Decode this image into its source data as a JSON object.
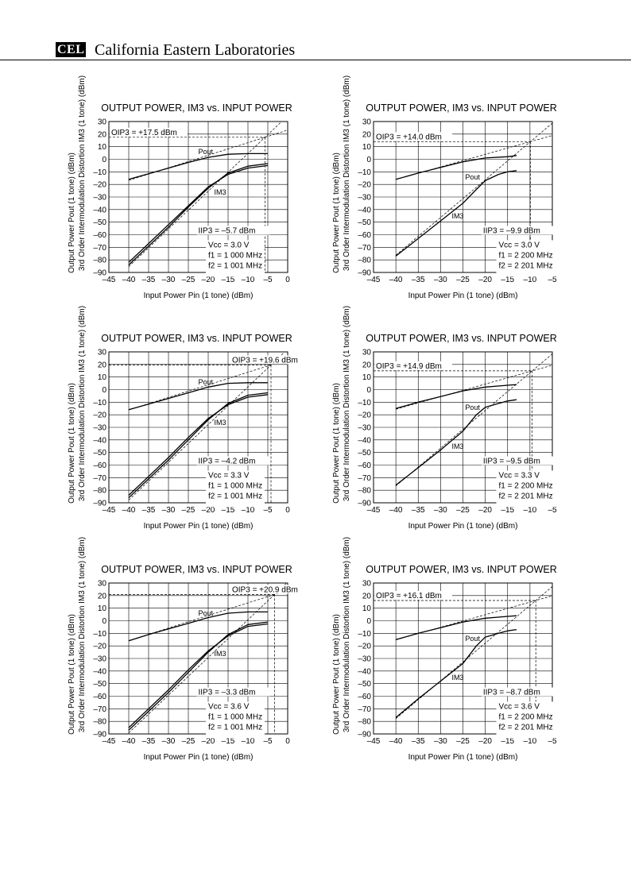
{
  "header": {
    "logo_text": "CEL",
    "company": "California Eastern Laboratories"
  },
  "chart_data": [
    {
      "type": "line",
      "title": "OUTPUT POWER, IM3 vs. INPUT POWER",
      "xlabel": "Input Power  Pin (1 tone)  (dBm)",
      "ylabel_lines": [
        "Output Power  Pout (1 tone)  (dBm)",
        "3rd Order Intermodulation Distortion  IM3 (1 tone)  (dBm)"
      ],
      "xlim": [
        -45,
        0
      ],
      "ylim": [
        -90,
        30
      ],
      "xticks": [
        -45,
        -40,
        -35,
        -30,
        -25,
        -20,
        -15,
        -10,
        -5,
        0
      ],
      "xtick_labels": [
        "–45",
        "–40",
        "–35",
        "–30",
        "–25",
        "–20",
        "–15",
        "–10",
        "–5",
        "0"
      ],
      "yticks": [
        30,
        20,
        10,
        0,
        -10,
        -20,
        -30,
        -40,
        -50,
        -60,
        -70,
        -80,
        -90
      ],
      "ytick_labels": [
        "30",
        "20",
        "10",
        "0",
        "–10",
        "–20",
        "–30",
        "–40",
        "–50",
        "–60",
        "–70",
        "–80",
        "–90"
      ],
      "oip3_label": "OIP3 = +17.5 dBm",
      "iip3_label": "IIP3 = –5.7 dBm",
      "oip3": 17.5,
      "iip3": -5.7,
      "conditions": [
        "Vcc = 3.0 V",
        "f1 = 1 000 MHz",
        "f2 = 1 001 MHz"
      ],
      "pout_label": "Pout",
      "im3_label": "IM3",
      "series": [
        {
          "x": [
            -40,
            -35,
            -30,
            -25,
            -20,
            -15,
            -10,
            -5
          ],
          "y": [
            -16,
            -11.5,
            -7,
            -2.5,
            1.5,
            4,
            4.5,
            4.5
          ]
        },
        {
          "x": [
            -40,
            -35,
            -30,
            -25,
            -20,
            -15,
            -10,
            -5
          ],
          "y": [
            -84,
            -69,
            -54,
            -38,
            -23,
            -11,
            -5.5,
            -3.5
          ]
        },
        {
          "x": [
            -40,
            -35,
            -30,
            -25,
            -20,
            -15,
            -10,
            -5
          ],
          "y": [
            -82,
            -67,
            -52,
            -37,
            -22,
            -12,
            -7,
            -5
          ]
        }
      ]
    },
    {
      "type": "line",
      "title": "OUTPUT POWER, IM3 vs. INPUT POWER",
      "xlabel": "Input Power  Pin (1 tone)  (dBm)",
      "ylabel_lines": [
        "Output Power  Pout (1 tone)  (dBm)",
        "3rd Order Intermodulation Distortion  IM3 (1 tone)  (dBm)"
      ],
      "xlim": [
        -45,
        -5
      ],
      "ylim": [
        -90,
        30
      ],
      "xticks": [
        -45,
        -40,
        -35,
        -30,
        -25,
        -20,
        -15,
        -10,
        -5
      ],
      "xtick_labels": [
        "–45",
        "–40",
        "–35",
        "–30",
        "–25",
        "–20",
        "–15",
        "–10",
        "–5"
      ],
      "yticks": [
        30,
        20,
        10,
        0,
        -10,
        -20,
        -30,
        -40,
        -50,
        -60,
        -70,
        -80,
        -90
      ],
      "ytick_labels": [
        "30",
        "20",
        "10",
        "0",
        "–10",
        "–20",
        "–30",
        "–40",
        "–50",
        "–60",
        "–70",
        "–80",
        "–90"
      ],
      "oip3_label": "OIP3 = +14.0 dBm",
      "iip3_label": "IIP3 = –9.9 dBm",
      "oip3": 14.0,
      "iip3": -9.9,
      "conditions": [
        "Vcc = 3.0 V",
        "f1 = 2 200 MHz",
        "f2 = 2 201 MHz"
      ],
      "pout_label": "Pout",
      "im3_label": "IM3",
      "series": [
        {
          "x": [
            -40,
            -35,
            -30,
            -25,
            -20,
            -15,
            -13
          ],
          "y": [
            -16,
            -11,
            -6.5,
            -2,
            1,
            2,
            3
          ]
        },
        {
          "x": [
            -40,
            -35,
            -30,
            -25,
            -22,
            -20,
            -17,
            -15,
            -13
          ],
          "y": [
            -77,
            -63,
            -49,
            -35,
            -24,
            -17,
            -12,
            -10,
            -9
          ]
        }
      ]
    },
    {
      "type": "line",
      "title": "OUTPUT POWER, IM3 vs. INPUT POWER",
      "xlabel": "Input Power  Pin (1 tone)  (dBm)",
      "ylabel_lines": [
        "Output Power  Pout (1 tone)  (dBm)",
        "3rd Order Intermodulation Distortion  IM3 (1 tone)  (dBm)"
      ],
      "xlim": [
        -45,
        0
      ],
      "ylim": [
        -90,
        30
      ],
      "xticks": [
        -45,
        -40,
        -35,
        -30,
        -25,
        -20,
        -15,
        -10,
        -5,
        0
      ],
      "xtick_labels": [
        "–45",
        "–40",
        "–35",
        "–30",
        "–25",
        "–20",
        "–15",
        "–10",
        "–5",
        "0"
      ],
      "yticks": [
        30,
        20,
        10,
        0,
        -10,
        -20,
        -30,
        -40,
        -50,
        -60,
        -70,
        -80,
        -90
      ],
      "ytick_labels": [
        "30",
        "20",
        "10",
        "0",
        "–10",
        "–20",
        "–30",
        "–40",
        "–50",
        "–60",
        "–70",
        "–80",
        "–90"
      ],
      "oip3_label": "OIP3 = +19.6 dBm",
      "iip3_label": "IIP3 = –4.2 dBm",
      "oip3": 19.6,
      "iip3": -4.2,
      "conditions": [
        "Vcc = 3.3 V",
        "f1 = 1 000 MHz",
        "f2 = 1 001 MHz"
      ],
      "pout_label": "Pout",
      "im3_label": "IM3",
      "series": [
        {
          "x": [
            -40,
            -35,
            -30,
            -25,
            -20,
            -15,
            -10,
            -5
          ],
          "y": [
            -16,
            -11.5,
            -7,
            -2.5,
            2,
            5,
            5.5,
            5.5
          ]
        },
        {
          "x": [
            -40,
            -35,
            -30,
            -25,
            -20,
            -15,
            -10,
            -5
          ],
          "y": [
            -86,
            -71,
            -56,
            -40,
            -24,
            -11,
            -4.5,
            -2.5
          ]
        },
        {
          "x": [
            -40,
            -35,
            -30,
            -25,
            -20,
            -15,
            -10,
            -5
          ],
          "y": [
            -84,
            -69,
            -54,
            -38,
            -23,
            -12,
            -6,
            -4
          ]
        }
      ]
    },
    {
      "type": "line",
      "title": "OUTPUT POWER, IM3 vs. INPUT POWER",
      "xlabel": "Input Power  Pin (1 tone)  (dBm)",
      "ylabel_lines": [
        "Output Power  Pout (1 tone)  (dBm)",
        "3rd Order Intermodulation Distortion  IM3 (1 tone)  (dBm)"
      ],
      "xlim": [
        -45,
        -5
      ],
      "ylim": [
        -90,
        30
      ],
      "xticks": [
        -45,
        -40,
        -35,
        -30,
        -25,
        -20,
        -15,
        -10,
        -5
      ],
      "xtick_labels": [
        "–45",
        "–40",
        "–35",
        "–30",
        "–25",
        "–20",
        "–15",
        "–10",
        "–5"
      ],
      "yticks": [
        30,
        20,
        10,
        0,
        -10,
        -20,
        -30,
        -40,
        -50,
        -60,
        -70,
        -80,
        -90
      ],
      "ytick_labels": [
        "30",
        "20",
        "10",
        "0",
        "–10",
        "–20",
        "–30",
        "–40",
        "–50",
        "–60",
        "–70",
        "–80",
        "–90"
      ],
      "oip3_label": "OIP3 = +14.9 dBm",
      "iip3_label": "IIP3 = –9.5 dBm",
      "oip3": 14.9,
      "iip3": -9.5,
      "conditions": [
        "Vcc = 3.3 V",
        "f1 = 2 200 MHz",
        "f2 = 2 201 MHz"
      ],
      "pout_label": "Pout",
      "im3_label": "IM3",
      "series": [
        {
          "x": [
            -40,
            -35,
            -30,
            -25,
            -20,
            -15,
            -13
          ],
          "y": [
            -15,
            -10,
            -5.5,
            -1,
            2,
            3.5,
            4
          ]
        },
        {
          "x": [
            -40,
            -35,
            -30,
            -25,
            -22,
            -20,
            -17,
            -15,
            -13
          ],
          "y": [
            -76,
            -62,
            -48,
            -33,
            -20,
            -14,
            -11,
            -9,
            -8
          ]
        }
      ]
    },
    {
      "type": "line",
      "title": "OUTPUT POWER, IM3 vs. INPUT POWER",
      "xlabel": "Input Power  Pin (1 tone)  (dBm)",
      "ylabel_lines": [
        "Output Power  Pout (1 tone)  (dBm)",
        "3rd Order Intermodulation Distortion  IM3 (1 tone)  (dBm)"
      ],
      "xlim": [
        -45,
        0
      ],
      "ylim": [
        -90,
        30
      ],
      "xticks": [
        -45,
        -40,
        -35,
        -30,
        -25,
        -20,
        -15,
        -10,
        -5,
        0
      ],
      "xtick_labels": [
        "–45",
        "–40",
        "–35",
        "–30",
        "–25",
        "–20",
        "–15",
        "–10",
        "–5",
        "0"
      ],
      "yticks": [
        30,
        20,
        10,
        0,
        -10,
        -20,
        -30,
        -40,
        -50,
        -60,
        -70,
        -80,
        -90
      ],
      "ytick_labels": [
        "30",
        "20",
        "10",
        "0",
        "–10",
        "–20",
        "–30",
        "–40",
        "–50",
        "–60",
        "–70",
        "–80",
        "–90"
      ],
      "oip3_label": "OIP3 = +20.9 dBm",
      "iip3_label": "IIP3 = –3.3 dBm",
      "oip3": 20.9,
      "iip3": -3.3,
      "conditions": [
        "Vcc = 3.6 V",
        "f1 = 1 000 MHz",
        "f2 = 1 001 MHz"
      ],
      "pout_label": "Pout",
      "im3_label": "IM3",
      "series": [
        {
          "x": [
            -40,
            -35,
            -30,
            -25,
            -20,
            -15,
            -10,
            -5
          ],
          "y": [
            -16,
            -11,
            -6.5,
            -2,
            2.5,
            6,
            7,
            7
          ]
        },
        {
          "x": [
            -40,
            -35,
            -30,
            -25,
            -20,
            -15,
            -10,
            -5
          ],
          "y": [
            -87,
            -72,
            -57,
            -41,
            -25,
            -11,
            -3,
            -1
          ]
        },
        {
          "x": [
            -40,
            -35,
            -30,
            -25,
            -20,
            -15,
            -10,
            -5
          ],
          "y": [
            -85,
            -70,
            -55,
            -39,
            -24,
            -12,
            -4.5,
            -2.5
          ]
        }
      ]
    },
    {
      "type": "line",
      "title": "OUTPUT POWER, IM3 vs. INPUT POWER",
      "xlabel": "Input Power  Pin (1 tone)  (dBm)",
      "ylabel_lines": [
        "Output Power  Pout (1 tone)  (dBm)",
        "3rd Order Intermodulation Distortion  IM3 (1 tone)  (dBm)"
      ],
      "xlim": [
        -45,
        -5
      ],
      "ylim": [
        -90,
        30
      ],
      "xticks": [
        -45,
        -40,
        -35,
        -30,
        -25,
        -20,
        -15,
        -10,
        -5
      ],
      "xtick_labels": [
        "–45",
        "–40",
        "–35",
        "–30",
        "–25",
        "–20",
        "–15",
        "–10",
        "–5"
      ],
      "yticks": [
        30,
        20,
        10,
        0,
        -10,
        -20,
        -30,
        -40,
        -50,
        -60,
        -70,
        -80,
        -90
      ],
      "ytick_labels": [
        "30",
        "20",
        "10",
        "0",
        "–10",
        "–20",
        "–30",
        "–40",
        "–50",
        "–60",
        "–70",
        "–80",
        "–90"
      ],
      "oip3_label": "OIP3 = +16.1 dBm",
      "iip3_label": "IIP3 = –8.7 dBm",
      "oip3": 16.1,
      "iip3": -8.7,
      "conditions": [
        "Vcc = 3.6 V",
        "f1 = 2 200 MHz",
        "f2 = 2 201 MHz"
      ],
      "pout_label": "Pout",
      "im3_label": "IM3",
      "series": [
        {
          "x": [
            -40,
            -35,
            -30,
            -25,
            -20,
            -15,
            -13
          ],
          "y": [
            -15,
            -10,
            -5.5,
            -1,
            2,
            3.5,
            4
          ]
        },
        {
          "x": [
            -40,
            -35,
            -30,
            -25,
            -22,
            -20,
            -17,
            -15,
            -13
          ],
          "y": [
            -77,
            -62,
            -48,
            -34,
            -20,
            -13,
            -10,
            -8,
            -7
          ]
        }
      ]
    }
  ]
}
